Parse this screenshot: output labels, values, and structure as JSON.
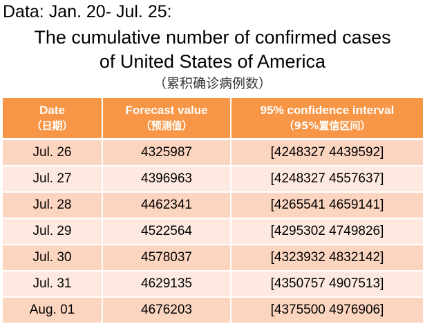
{
  "header": {
    "data_range": "Data: Jan. 20- Jul. 25:",
    "title_line1": "The cumulative number of confirmed cases",
    "title_line2": "of  United States of America",
    "subtitle": "（累积确诊病例数）"
  },
  "table": {
    "columns": [
      {
        "en": "Date",
        "zh": "（日期）"
      },
      {
        "en": "Forecast value",
        "zh": "（预测值）"
      },
      {
        "en": "95% confidence interval",
        "zh": "（95%置信区间）"
      }
    ],
    "rows": [
      {
        "date": "Jul. 26",
        "forecast": "4325987",
        "ci": "[4248327 4439592]"
      },
      {
        "date": "Jul. 27",
        "forecast": "4396963",
        "ci": "[4248327 4557637]"
      },
      {
        "date": "Jul. 28",
        "forecast": "4462341",
        "ci": "[4265541 4659141]"
      },
      {
        "date": "Jul. 29",
        "forecast": "4522564",
        "ci": "[4295302 4749826]"
      },
      {
        "date": "Jul. 30",
        "forecast": "4578037",
        "ci": "[4323932 4832142]"
      },
      {
        "date": "Jul. 31",
        "forecast": "4629135",
        "ci": "[4350757 4907513]"
      },
      {
        "date": "Aug. 01",
        "forecast": "4676203",
        "ci": "[4375500 4976906]"
      }
    ]
  },
  "colors": {
    "header_bg": "#f79646",
    "row_odd_bg": "#fcd5c0",
    "row_even_bg": "#fde9e0"
  }
}
